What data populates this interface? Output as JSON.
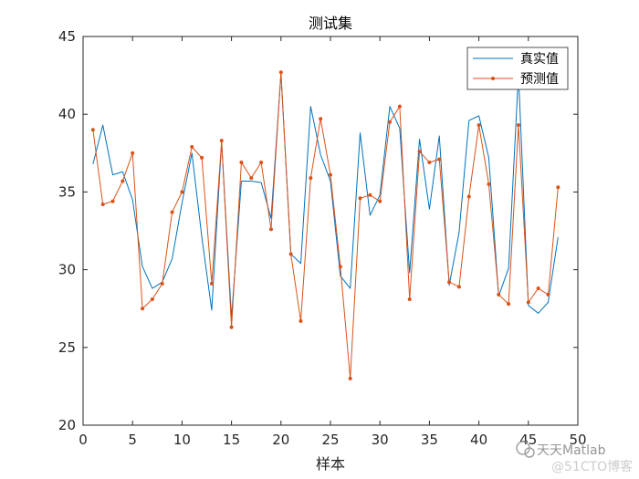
{
  "chart_data": {
    "type": "line",
    "title": "测试集",
    "xlabel": "样本",
    "ylabel": "",
    "xlim": [
      0,
      50
    ],
    "ylim": [
      20,
      45
    ],
    "xticks": [
      0,
      5,
      10,
      15,
      20,
      25,
      30,
      35,
      40,
      45,
      50
    ],
    "yticks": [
      20,
      25,
      30,
      35,
      40,
      45
    ],
    "grid": false,
    "legend_position": "top-right",
    "x": [
      1,
      2,
      3,
      4,
      5,
      6,
      7,
      8,
      9,
      10,
      11,
      12,
      13,
      14,
      15,
      16,
      17,
      18,
      19,
      20,
      21,
      22,
      23,
      24,
      25,
      26,
      27,
      28,
      29,
      30,
      31,
      32,
      33,
      34,
      35,
      36,
      37,
      38,
      39,
      40,
      41,
      42,
      43,
      44,
      45,
      46,
      47,
      48
    ],
    "series": [
      {
        "name": "真实值",
        "color": "#0072BD",
        "marker": "none",
        "values": [
          36.8,
          39.3,
          36.1,
          36.3,
          34.5,
          30.2,
          28.8,
          29.2,
          30.7,
          34.3,
          37.5,
          32.1,
          27.4,
          38.2,
          26.9,
          35.7,
          35.7,
          35.6,
          33.3,
          42.6,
          31.0,
          30.4,
          40.5,
          37.4,
          35.7,
          29.6,
          28.8,
          38.8,
          33.5,
          34.8,
          40.5,
          39.1,
          29.8,
          38.4,
          33.9,
          38.6,
          29.0,
          32.4,
          39.6,
          39.9,
          37.2,
          28.3,
          30.1,
          42.6,
          27.7,
          27.2,
          27.9,
          32.1
        ]
      },
      {
        "name": "预测值",
        "color": "#D95319",
        "marker": "dot",
        "values": [
          39.0,
          34.2,
          34.4,
          35.7,
          37.5,
          27.5,
          28.1,
          29.1,
          33.7,
          35.0,
          37.9,
          37.2,
          29.1,
          38.3,
          26.3,
          36.9,
          35.9,
          36.9,
          32.6,
          42.7,
          31.0,
          26.7,
          35.9,
          39.7,
          36.1,
          30.2,
          23.0,
          34.6,
          34.8,
          34.4,
          39.5,
          40.5,
          28.1,
          37.6,
          36.9,
          37.1,
          29.2,
          28.9,
          34.7,
          39.3,
          35.5,
          28.4,
          27.8,
          39.3,
          27.9,
          28.8,
          28.4,
          35.3
        ]
      }
    ]
  },
  "watermark": {
    "line1": "天天Matlab",
    "line2": "@51CTO博客"
  }
}
